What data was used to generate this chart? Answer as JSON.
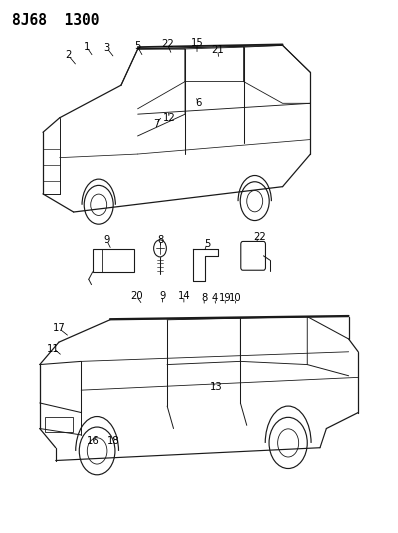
{
  "title": "8J68  1300",
  "bg_color": "#ffffff",
  "line_color": "#1a1a1a",
  "callout_fontsize": 7.2,
  "title_fontsize": 10.5,
  "fig_width": 3.98,
  "fig_height": 5.33
}
